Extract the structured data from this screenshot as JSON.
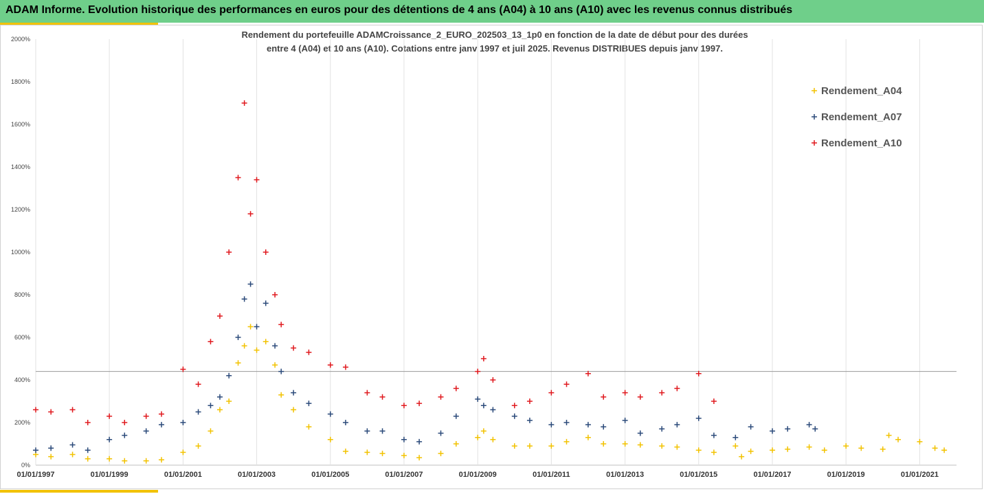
{
  "header": {
    "title": "ADAM Informe. Evolution historique des performances en euros pour des détentions de 4 ans (A04) à 10 ans (A10) avec les revenus connus distribués"
  },
  "chart_data": {
    "type": "scatter",
    "title_line1": "Rendement du portefeuille ADAMCroissance_2_EURO_202503_13_1p0  en fonction de la date de début pour des durées",
    "title_line2": "entre 4 (A04) et 10 ans (A10). Cotations  entre janv 1997 et juil 2025. Revenus DISTRIBUES depuis janv 1997.",
    "xlabel": "",
    "ylabel": "",
    "x_range": [
      "1997-01-01",
      "2022-01-01"
    ],
    "ylim": [
      0,
      2000
    ],
    "y_ticks": [
      0,
      200,
      400,
      600,
      800,
      1000,
      1200,
      1400,
      1600,
      1800,
      2000
    ],
    "y_tick_labels": [
      "0%",
      "200%",
      "400%",
      "600%",
      "800%",
      "1000%",
      "1200%",
      "1400%",
      "1600%",
      "1800%",
      "2000%"
    ],
    "x_tick_labels": [
      "01/01/1997",
      "01/01/1999",
      "01/01/2001",
      "01/01/2003",
      "01/01/2005",
      "01/01/2007",
      "01/01/2009",
      "01/01/2011",
      "01/01/2013",
      "01/01/2015",
      "01/01/2017",
      "01/01/2019",
      "01/01/2021"
    ],
    "x_tick_dates": [
      "1997-01-01",
      "1999-01-01",
      "2001-01-01",
      "2003-01-01",
      "2005-01-01",
      "2007-01-01",
      "2009-01-01",
      "2011-01-01",
      "2013-01-01",
      "2015-01-01",
      "2017-01-01",
      "2019-01-01",
      "2021-01-01"
    ],
    "grid": "vertical",
    "reference_line": 440,
    "legend_position": "top-right",
    "marker": "+",
    "series": [
      {
        "name": "Rendement_A04",
        "color": "#f2c200",
        "points": [
          [
            "1997-01-01",
            50
          ],
          [
            "1997-06-01",
            40
          ],
          [
            "1998-01-01",
            50
          ],
          [
            "1998-06-01",
            30
          ],
          [
            "1999-01-01",
            30
          ],
          [
            "1999-06-01",
            20
          ],
          [
            "2000-01-01",
            20
          ],
          [
            "2000-06-01",
            25
          ],
          [
            "2001-01-01",
            60
          ],
          [
            "2001-06-01",
            90
          ],
          [
            "2001-10-01",
            160
          ],
          [
            "2002-01-01",
            260
          ],
          [
            "2002-04-01",
            300
          ],
          [
            "2002-07-01",
            480
          ],
          [
            "2002-09-01",
            560
          ],
          [
            "2002-11-01",
            650
          ],
          [
            "2003-01-01",
            540
          ],
          [
            "2003-04-01",
            580
          ],
          [
            "2003-07-01",
            470
          ],
          [
            "2003-09-01",
            330
          ],
          [
            "2004-01-01",
            260
          ],
          [
            "2004-06-01",
            180
          ],
          [
            "2005-01-01",
            120
          ],
          [
            "2005-06-01",
            65
          ],
          [
            "2006-01-01",
            60
          ],
          [
            "2006-06-01",
            55
          ],
          [
            "2007-01-01",
            45
          ],
          [
            "2007-06-01",
            35
          ],
          [
            "2008-01-01",
            55
          ],
          [
            "2008-06-01",
            100
          ],
          [
            "2009-01-01",
            130
          ],
          [
            "2009-03-01",
            160
          ],
          [
            "2009-06-01",
            120
          ],
          [
            "2010-01-01",
            90
          ],
          [
            "2010-06-01",
            90
          ],
          [
            "2011-01-01",
            90
          ],
          [
            "2011-06-01",
            110
          ],
          [
            "2012-01-01",
            130
          ],
          [
            "2012-06-01",
            100
          ],
          [
            "2013-01-01",
            100
          ],
          [
            "2013-06-01",
            95
          ],
          [
            "2014-01-01",
            90
          ],
          [
            "2014-06-01",
            85
          ],
          [
            "2015-01-01",
            70
          ],
          [
            "2015-06-01",
            60
          ],
          [
            "2016-01-01",
            90
          ],
          [
            "2016-03-01",
            40
          ],
          [
            "2016-06-01",
            65
          ],
          [
            "2017-01-01",
            70
          ],
          [
            "2017-06-01",
            75
          ],
          [
            "2018-01-01",
            85
          ],
          [
            "2018-06-01",
            70
          ],
          [
            "2019-01-01",
            90
          ],
          [
            "2019-06-01",
            80
          ],
          [
            "2020-01-01",
            75
          ],
          [
            "2020-03-01",
            140
          ],
          [
            "2020-06-01",
            120
          ],
          [
            "2021-01-01",
            110
          ],
          [
            "2021-06-01",
            80
          ],
          [
            "2021-09-01",
            70
          ]
        ]
      },
      {
        "name": "Rendement_A07",
        "color": "#2b4a7a",
        "points": [
          [
            "1997-01-01",
            70
          ],
          [
            "1997-06-01",
            80
          ],
          [
            "1998-01-01",
            95
          ],
          [
            "1998-06-01",
            70
          ],
          [
            "1999-01-01",
            120
          ],
          [
            "1999-06-01",
            140
          ],
          [
            "2000-01-01",
            160
          ],
          [
            "2000-06-01",
            190
          ],
          [
            "2001-01-01",
            200
          ],
          [
            "2001-06-01",
            250
          ],
          [
            "2001-10-01",
            280
          ],
          [
            "2002-01-01",
            320
          ],
          [
            "2002-04-01",
            420
          ],
          [
            "2002-07-01",
            600
          ],
          [
            "2002-09-01",
            780
          ],
          [
            "2002-11-01",
            850
          ],
          [
            "2003-01-01",
            650
          ],
          [
            "2003-04-01",
            760
          ],
          [
            "2003-07-01",
            560
          ],
          [
            "2003-09-01",
            440
          ],
          [
            "2004-01-01",
            340
          ],
          [
            "2004-06-01",
            290
          ],
          [
            "2005-01-01",
            240
          ],
          [
            "2005-06-01",
            200
          ],
          [
            "2006-01-01",
            160
          ],
          [
            "2006-06-01",
            160
          ],
          [
            "2007-01-01",
            120
          ],
          [
            "2007-06-01",
            110
          ],
          [
            "2008-01-01",
            150
          ],
          [
            "2008-06-01",
            230
          ],
          [
            "2009-01-01",
            310
          ],
          [
            "2009-03-01",
            280
          ],
          [
            "2009-06-01",
            260
          ],
          [
            "2010-01-01",
            230
          ],
          [
            "2010-06-01",
            210
          ],
          [
            "2011-01-01",
            190
          ],
          [
            "2011-06-01",
            200
          ],
          [
            "2012-01-01",
            190
          ],
          [
            "2012-06-01",
            180
          ],
          [
            "2013-01-01",
            210
          ],
          [
            "2013-06-01",
            150
          ],
          [
            "2014-01-01",
            170
          ],
          [
            "2014-06-01",
            190
          ],
          [
            "2015-01-01",
            220
          ],
          [
            "2015-06-01",
            140
          ],
          [
            "2016-01-01",
            130
          ],
          [
            "2016-06-01",
            180
          ],
          [
            "2017-01-01",
            160
          ],
          [
            "2017-06-01",
            170
          ],
          [
            "2018-01-01",
            190
          ],
          [
            "2018-03-01",
            170
          ]
        ]
      },
      {
        "name": "Rendement_A10",
        "color": "#e0191e",
        "points": [
          [
            "1997-01-01",
            260
          ],
          [
            "1997-06-01",
            250
          ],
          [
            "1998-01-01",
            260
          ],
          [
            "1998-06-01",
            200
          ],
          [
            "1999-01-01",
            230
          ],
          [
            "1999-06-01",
            200
          ],
          [
            "2000-01-01",
            230
          ],
          [
            "2000-06-01",
            240
          ],
          [
            "2001-01-01",
            450
          ],
          [
            "2001-06-01",
            380
          ],
          [
            "2001-10-01",
            580
          ],
          [
            "2002-01-01",
            700
          ],
          [
            "2002-04-01",
            1000
          ],
          [
            "2002-07-01",
            1350
          ],
          [
            "2002-09-01",
            1700
          ],
          [
            "2002-11-01",
            1180
          ],
          [
            "2003-01-01",
            1340
          ],
          [
            "2003-04-01",
            1000
          ],
          [
            "2003-07-01",
            800
          ],
          [
            "2003-09-01",
            660
          ],
          [
            "2004-01-01",
            550
          ],
          [
            "2004-06-01",
            530
          ],
          [
            "2005-01-01",
            470
          ],
          [
            "2005-06-01",
            460
          ],
          [
            "2006-01-01",
            340
          ],
          [
            "2006-06-01",
            320
          ],
          [
            "2007-01-01",
            280
          ],
          [
            "2007-06-01",
            290
          ],
          [
            "2008-01-01",
            320
          ],
          [
            "2008-06-01",
            360
          ],
          [
            "2009-01-01",
            440
          ],
          [
            "2009-03-01",
            500
          ],
          [
            "2009-06-01",
            400
          ],
          [
            "2010-01-01",
            280
          ],
          [
            "2010-06-01",
            300
          ],
          [
            "2011-01-01",
            340
          ],
          [
            "2011-06-01",
            380
          ],
          [
            "2012-01-01",
            430
          ],
          [
            "2012-06-01",
            320
          ],
          [
            "2013-01-01",
            340
          ],
          [
            "2013-06-01",
            320
          ],
          [
            "2014-01-01",
            340
          ],
          [
            "2014-06-01",
            360
          ],
          [
            "2015-01-01",
            430
          ],
          [
            "2015-06-01",
            300
          ]
        ]
      }
    ]
  }
}
